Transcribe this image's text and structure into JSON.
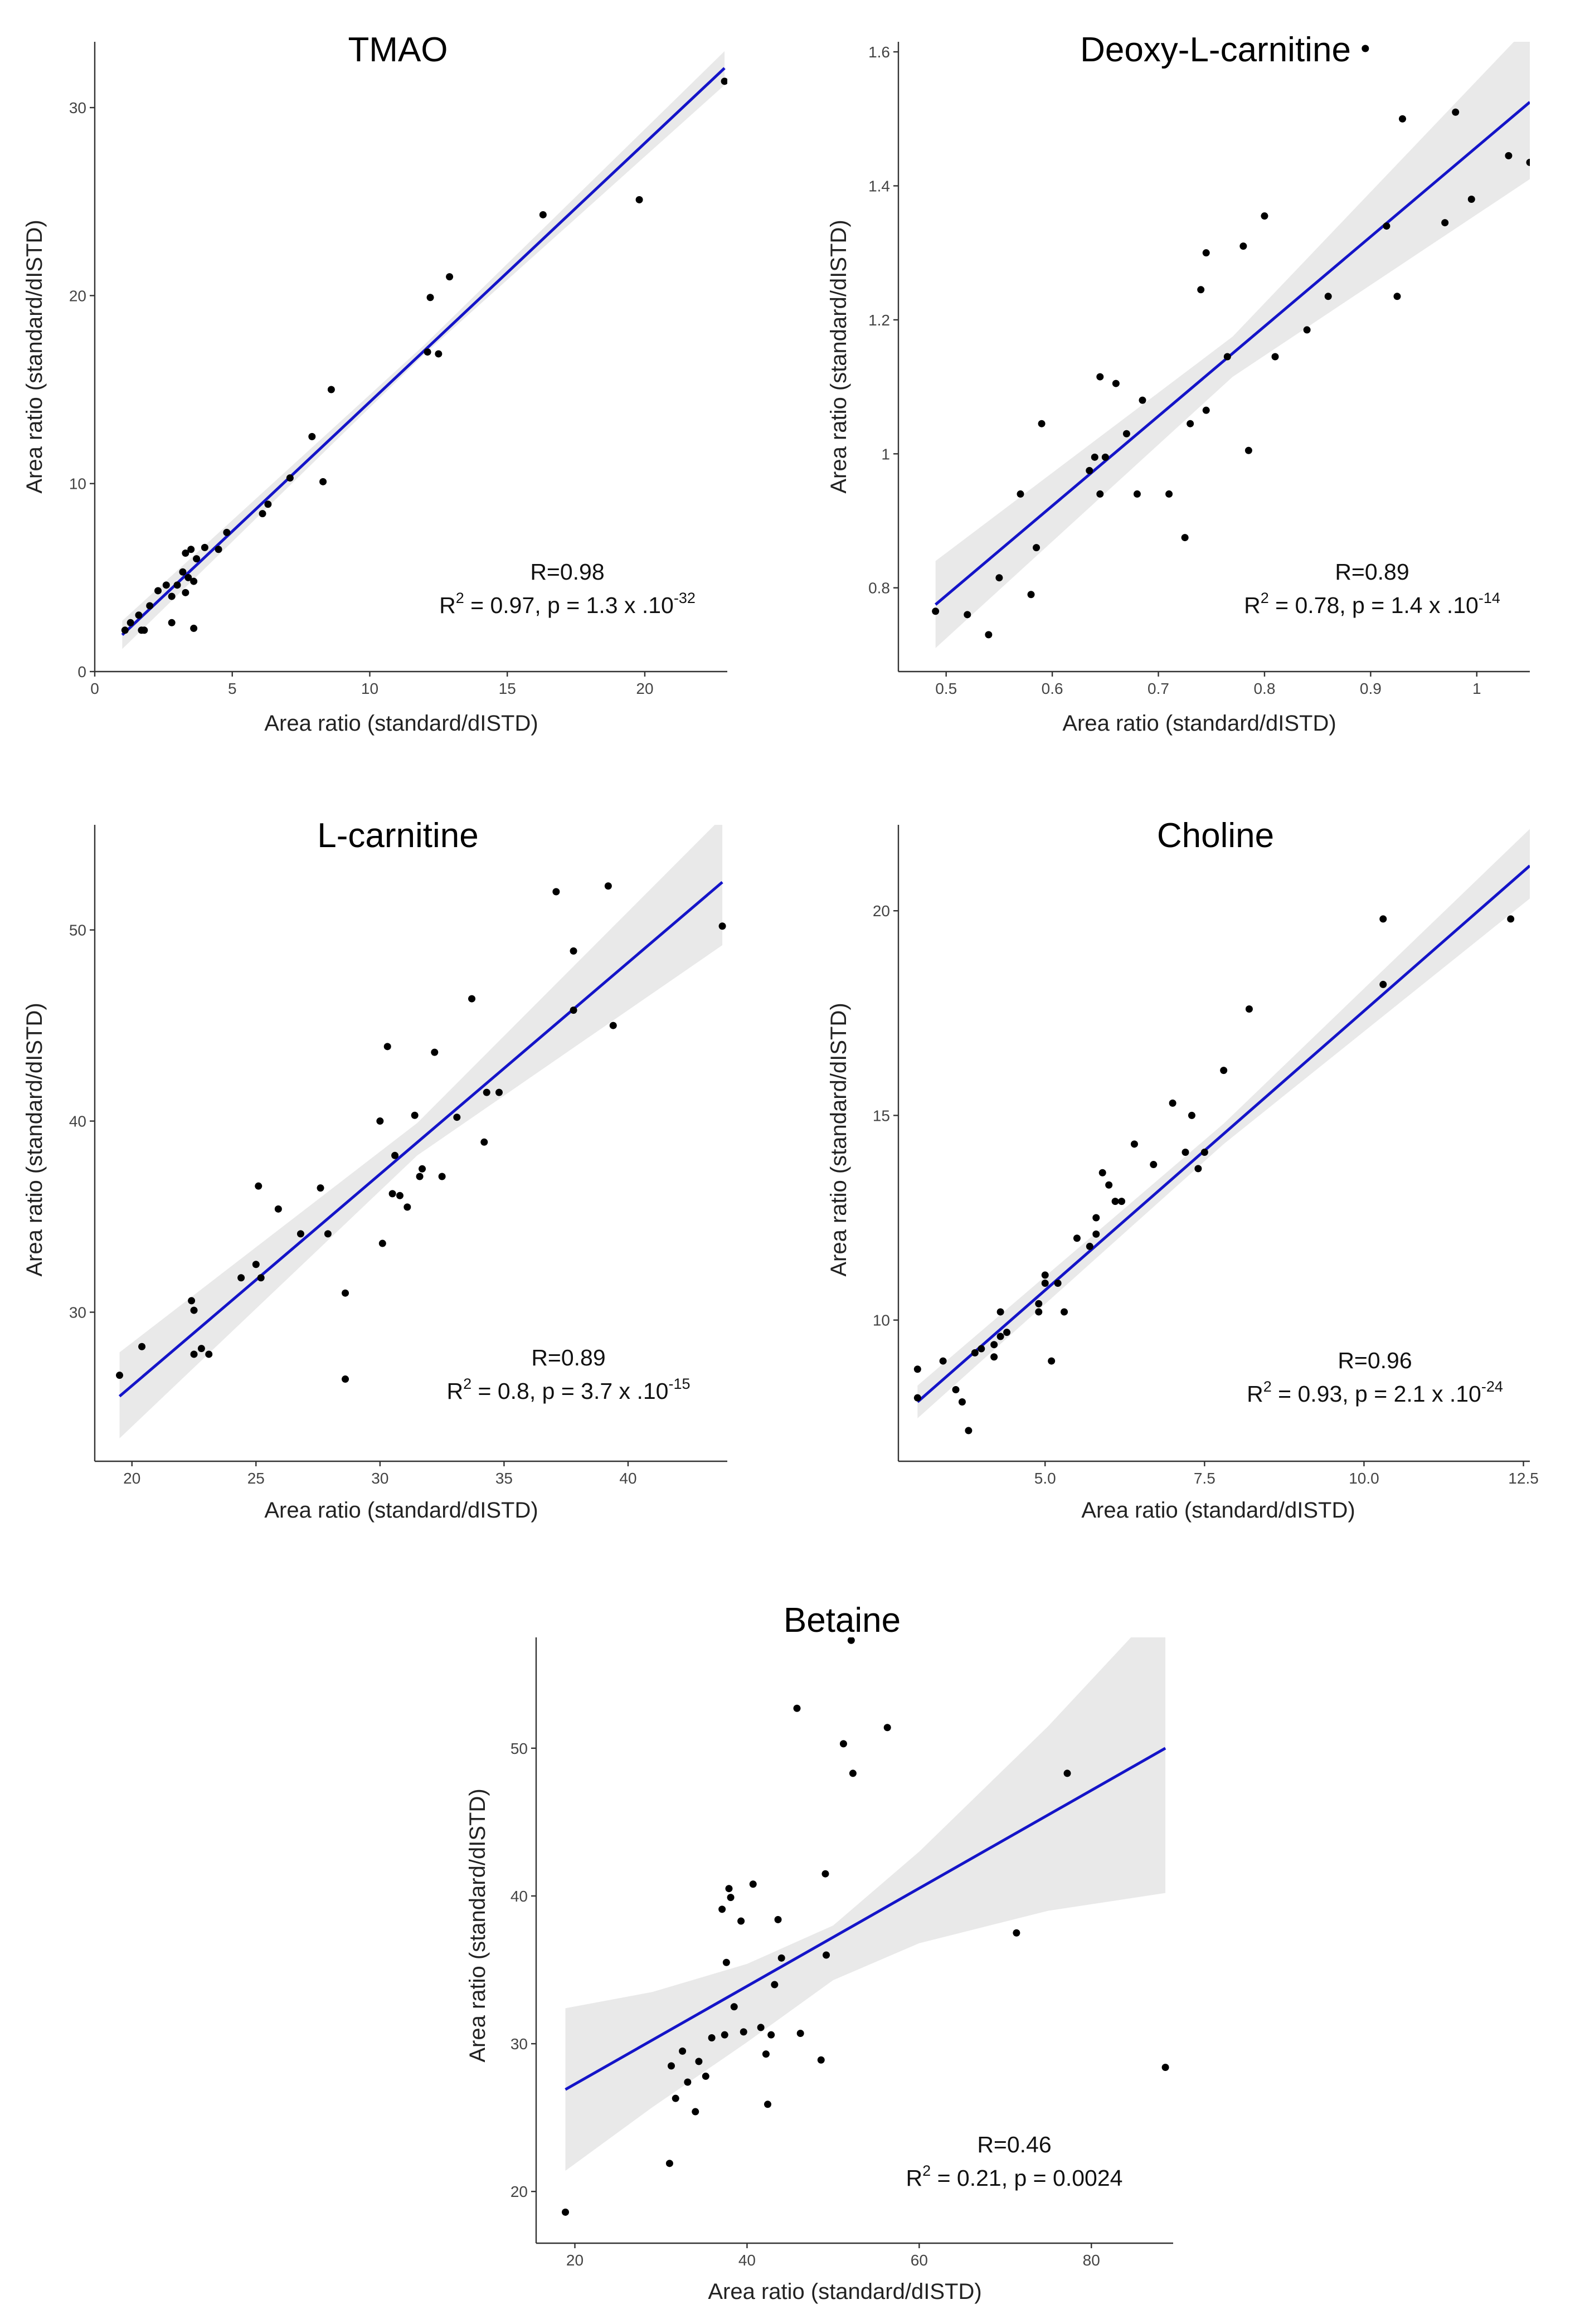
{
  "figure": {
    "description_free": true
  },
  "chart_data": [
    {
      "type": "scatter",
      "title": "TMAO",
      "xlabel": "Area ratio (standard/dISTD)",
      "ylabel": "Area ratio (standard/dISTD)",
      "xlim": [
        0,
        23
      ],
      "ylim": [
        0,
        33.5
      ],
      "xticks": [
        0,
        5,
        10,
        15,
        20
      ],
      "yticks": [
        0,
        10,
        20,
        30
      ],
      "x": [
        1.1,
        1.3,
        1.6,
        1.8,
        2.0,
        2.3,
        2.6,
        2.8,
        3.0,
        3.2,
        3.3,
        3.4,
        3.5,
        3.6,
        3.7,
        4.0,
        4.5,
        1.7,
        2.8,
        3.6,
        3.3,
        4.8,
        6.1,
        6.3,
        7.1,
        7.9,
        8.3,
        8.6,
        12.1,
        12.2,
        12.5,
        12.9,
        16.3,
        19.8,
        22.9
      ],
      "y": [
        2.2,
        2.6,
        3.0,
        2.2,
        3.5,
        4.3,
        4.6,
        4.0,
        4.6,
        5.3,
        6.3,
        5.0,
        6.5,
        4.8,
        6.0,
        6.6,
        6.5,
        2.2,
        2.6,
        2.3,
        4.2,
        7.4,
        8.4,
        8.9,
        10.3,
        12.5,
        10.1,
        15.0,
        17.0,
        19.9,
        16.9,
        21.0,
        24.3,
        25.1,
        31.4
      ],
      "fit": {
        "x": [
          1.0,
          22.9
        ],
        "y": [
          1.95,
          32.1
        ]
      },
      "ci": {
        "x": [
          1.0,
          12.0,
          22.9
        ],
        "lower": [
          1.2,
          16.9,
          31.2
        ],
        "upper": [
          2.7,
          17.4,
          33.0
        ]
      },
      "annotation": {
        "r": "R=0.98",
        "r2_prefix": "R",
        "r2_exp": "2",
        "r2_text": " = 0.97, p = 1.3 x .10",
        "p_exp": "-32"
      }
    },
    {
      "type": "scatter",
      "title": "Deoxy-L-carnitine",
      "xlabel": "Area ratio (standard/dISTD)",
      "ylabel": "Area ratio (standard/dISTD)",
      "xlim": [
        0.455,
        1.05
      ],
      "ylim": [
        0.675,
        1.615
      ],
      "xticks": [
        0.5,
        0.6,
        0.7,
        0.8,
        0.9,
        1.0
      ],
      "yticks": [
        0.8,
        1.0,
        1.2,
        1.4,
        1.6
      ],
      "x": [
        0.49,
        0.52,
        0.54,
        0.55,
        0.57,
        0.58,
        0.585,
        0.59,
        0.635,
        0.64,
        0.645,
        0.645,
        0.65,
        0.66,
        0.67,
        0.68,
        0.685,
        0.71,
        0.725,
        0.73,
        0.74,
        0.745,
        0.745,
        0.765,
        0.78,
        0.785,
        0.8,
        0.81,
        0.84,
        0.86,
        0.895,
        0.915,
        0.925,
        0.93,
        0.97,
        0.98,
        0.995,
        1.03,
        1.05
      ],
      "y": [
        0.765,
        0.76,
        0.73,
        0.815,
        0.94,
        0.79,
        0.86,
        1.045,
        0.975,
        0.995,
        1.115,
        0.94,
        0.995,
        1.105,
        1.03,
        0.94,
        1.08,
        0.94,
        0.875,
        1.045,
        1.245,
        1.065,
        1.3,
        1.145,
        1.31,
        1.005,
        1.355,
        1.145,
        1.185,
        1.235,
        1.605,
        1.34,
        1.235,
        1.5,
        1.345,
        1.51,
        1.38,
        1.445,
        1.435
      ],
      "fit": {
        "x": [
          0.49,
          1.05
        ],
        "y": [
          0.775,
          1.525
        ]
      },
      "ci": {
        "x": [
          0.49,
          0.77,
          1.05
        ],
        "lower": [
          0.71,
          1.115,
          1.41
        ],
        "upper": [
          0.84,
          1.175,
          1.64
        ]
      },
      "annotation": {
        "r": "R=0.89",
        "r2_prefix": "R",
        "r2_exp": "2",
        "r2_text": " = 0.78, p = 1.4 x .10",
        "p_exp": "-14"
      }
    },
    {
      "type": "scatter",
      "title": "L-carnitine",
      "xlabel": "Area ratio (standard/dISTD)",
      "ylabel": "Area ratio (standard/dISTD)",
      "xlim": [
        18.5,
        44
      ],
      "ylim": [
        22.2,
        55.5
      ],
      "xticks": [
        20,
        25,
        30,
        35,
        40
      ],
      "yticks": [
        30,
        40,
        50
      ],
      "x": [
        19.5,
        20.4,
        22.4,
        22.5,
        22.5,
        22.8,
        23.1,
        24.4,
        25.0,
        25.1,
        25.2,
        25.9,
        26.8,
        27.6,
        27.9,
        28.6,
        28.6,
        30.0,
        30.1,
        30.3,
        30.5,
        30.6,
        30.8,
        31.1,
        31.4,
        31.6,
        31.7,
        32.2,
        32.5,
        33.1,
        33.7,
        34.2,
        34.3,
        34.8,
        37.1,
        37.8,
        37.8,
        39.2,
        39.4,
        43.8
      ],
      "y": [
        26.7,
        28.2,
        30.6,
        30.1,
        27.8,
        28.1,
        27.8,
        31.8,
        32.5,
        36.6,
        31.8,
        35.4,
        34.1,
        36.5,
        34.1,
        26.5,
        31.0,
        40.0,
        33.6,
        43.9,
        36.2,
        38.2,
        36.1,
        35.5,
        40.3,
        37.1,
        37.5,
        43.6,
        37.1,
        40.2,
        46.4,
        38.9,
        41.5,
        41.5,
        52.0,
        48.9,
        45.8,
        52.3,
        45.0,
        50.2
      ],
      "fit": {
        "x": [
          19.5,
          43.8
        ],
        "y": [
          25.6,
          52.5
        ]
      },
      "ci": {
        "x": [
          19.5,
          31.5,
          43.8
        ],
        "lower": [
          23.4,
          38.2,
          49.2
        ],
        "upper": [
          27.9,
          39.9,
          55.9
        ]
      },
      "annotation": {
        "r": "R=0.89",
        "r2_prefix": "R",
        "r2_exp": "2",
        "r2_text": " = 0.8, p = 3.7 x .10",
        "p_exp": "-15"
      }
    },
    {
      "type": "scatter",
      "title": "Choline",
      "xlabel": "Area ratio (standard/dISTD)",
      "ylabel": "Area ratio (standard/dISTD)",
      "xlim": [
        2.7,
        12.6
      ],
      "ylim": [
        6.55,
        22.1
      ],
      "xticks": [
        5.0,
        7.5,
        10.0,
        12.5
      ],
      "xtick_labels": [
        "5.0",
        "7.5",
        "10.0",
        "12.5"
      ],
      "yticks": [
        10,
        15,
        20
      ],
      "x": [
        3.0,
        3.0,
        3.4,
        3.6,
        3.7,
        3.8,
        3.9,
        4.0,
        4.2,
        4.2,
        4.3,
        4.3,
        4.4,
        4.9,
        4.9,
        5.0,
        5.0,
        5.1,
        5.2,
        5.3,
        5.5,
        5.7,
        5.8,
        5.8,
        5.9,
        6.0,
        6.1,
        6.2,
        6.4,
        6.7,
        7.0,
        7.2,
        7.3,
        7.4,
        7.5,
        7.8,
        8.2,
        10.3,
        10.3,
        12.3
      ],
      "y": [
        8.8,
        8.1,
        9.0,
        8.3,
        8.0,
        7.3,
        9.2,
        9.3,
        9.4,
        9.1,
        10.2,
        9.6,
        9.7,
        10.2,
        10.4,
        10.9,
        11.1,
        9.0,
        10.9,
        10.2,
        12.0,
        11.8,
        12.5,
        12.1,
        13.6,
        13.3,
        12.9,
        12.9,
        14.3,
        13.8,
        15.3,
        14.1,
        15.0,
        13.7,
        14.1,
        16.1,
        17.6,
        18.2,
        19.8,
        19.8
      ],
      "fit": {
        "x": [
          3.0,
          12.6
        ],
        "y": [
          8.0,
          21.1
        ]
      },
      "ci": {
        "x": [
          3.0,
          7.8,
          12.6
        ],
        "lower": [
          7.6,
          14.3,
          20.3
        ],
        "upper": [
          8.4,
          14.8,
          22.0
        ]
      },
      "annotation": {
        "r": "R=0.96",
        "r2_prefix": "R",
        "r2_exp": "2",
        "r2_text": " = 0.93, p = 2.1 x .10",
        "p_exp": "-24"
      }
    },
    {
      "type": "scatter",
      "title": "Betaine",
      "xlabel": "Area ratio (standard/dISTD)",
      "ylabel": "Area ratio (standard/dISTD)",
      "xlim": [
        15.5,
        89.5
      ],
      "ylim": [
        16.5,
        57.5
      ],
      "xticks": [
        20,
        40,
        60,
        80
      ],
      "yticks": [
        20,
        30,
        40,
        50
      ],
      "x": [
        18.9,
        31.0,
        31.2,
        31.7,
        32.5,
        33.1,
        34.0,
        34.4,
        35.2,
        35.9,
        37.1,
        37.4,
        37.6,
        37.9,
        38.1,
        38.5,
        39.3,
        39.6,
        40.7,
        41.6,
        42.2,
        42.4,
        42.8,
        43.2,
        43.6,
        44.0,
        45.8,
        46.2,
        48.6,
        49.1,
        49.2,
        51.2,
        52.1,
        52.3,
        56.3,
        71.3,
        77.2,
        88.6
      ],
      "y": [
        18.6,
        21.9,
        28.5,
        26.3,
        29.5,
        27.4,
        25.4,
        28.8,
        27.8,
        30.4,
        39.1,
        30.6,
        35.5,
        40.5,
        39.9,
        32.5,
        38.3,
        30.8,
        40.8,
        31.1,
        29.3,
        25.9,
        30.6,
        34.0,
        38.4,
        35.8,
        52.7,
        30.7,
        28.9,
        41.5,
        36.0,
        50.3,
        57.3,
        48.3,
        51.4,
        37.5,
        48.3,
        28.4
      ],
      "fit": {
        "x": [
          18.9,
          88.6
        ],
        "y": [
          26.9,
          50.0
        ]
      },
      "ci": {
        "x": [
          18.9,
          29.0,
          40.0,
          50.0,
          60.0,
          75.0,
          88.6
        ],
        "lower": [
          21.4,
          25.7,
          30.1,
          34.3,
          36.8,
          39.0,
          40.2
        ],
        "upper": [
          32.4,
          33.5,
          35.4,
          38.0,
          43.0,
          51.5,
          60.0
        ]
      },
      "annotation": {
        "r": "R=0.46",
        "r2_prefix": "R",
        "r2_exp": "2",
        "r2_text": " = 0.21, p = 0.0024",
        "p_exp": ""
      }
    }
  ]
}
